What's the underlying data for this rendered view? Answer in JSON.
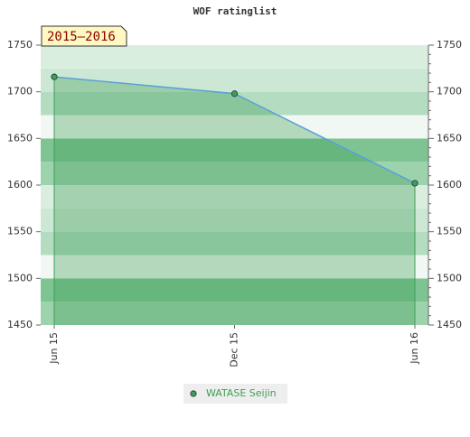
{
  "chart_data": {
    "type": "area",
    "title": "WOF ratinglist",
    "annotation": "2015–2016",
    "categories": [
      "Jun 15",
      "Dec 15",
      "Jun 16"
    ],
    "series": [
      {
        "name": "WATASE Seijin",
        "color": "#3f9e55",
        "line_color": "#5aa0d8",
        "values": [
          1716,
          1698,
          1602
        ]
      }
    ],
    "ylim": [
      1450,
      1750
    ],
    "yticks": [
      1450,
      1500,
      1550,
      1600,
      1650,
      1700,
      1750
    ],
    "y2lim": [
      1450,
      1750
    ],
    "y2ticks": [
      1450,
      1500,
      1550,
      1600,
      1650,
      1700,
      1750
    ],
    "grid": true
  }
}
